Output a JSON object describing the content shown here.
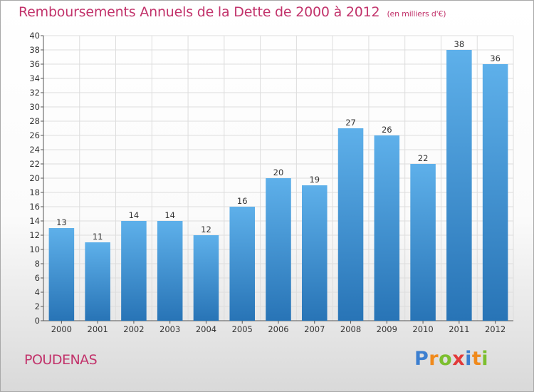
{
  "title": "Remboursements Annuels de la Dette de 2000 à 2012",
  "unit_label": "(en milliers d'€)",
  "commune": "POUDENAS",
  "logo": {
    "text": "Proxiti",
    "letters": [
      {
        "ch": "P",
        "color": "#3c7fd0"
      },
      {
        "ch": "r",
        "color": "#f08a1c"
      },
      {
        "ch": "o",
        "color": "#7cbf2f"
      },
      {
        "ch": "x",
        "color": "#e23a3a"
      },
      {
        "ch": "i",
        "color": "#3c7fd0"
      },
      {
        "ch": "t",
        "color": "#f08a1c"
      },
      {
        "ch": "i",
        "color": "#7cbf2f"
      }
    ]
  },
  "colors": {
    "title": "#c2336b",
    "bar_top": "#5eb0ea",
    "bar_bottom": "#2874b6",
    "grid": "#dddddd",
    "axis_text": "#333333"
  },
  "chart_data": {
    "type": "bar",
    "categories": [
      "2000",
      "2001",
      "2002",
      "2003",
      "2004",
      "2005",
      "2006",
      "2007",
      "2008",
      "2009",
      "2010",
      "2011",
      "2012"
    ],
    "values": [
      13,
      11,
      14,
      14,
      12,
      16,
      20,
      19,
      27,
      26,
      22,
      38,
      36
    ],
    "ylim": [
      0,
      40
    ],
    "ytick_step": 2,
    "grid": true,
    "data_labels": true
  }
}
